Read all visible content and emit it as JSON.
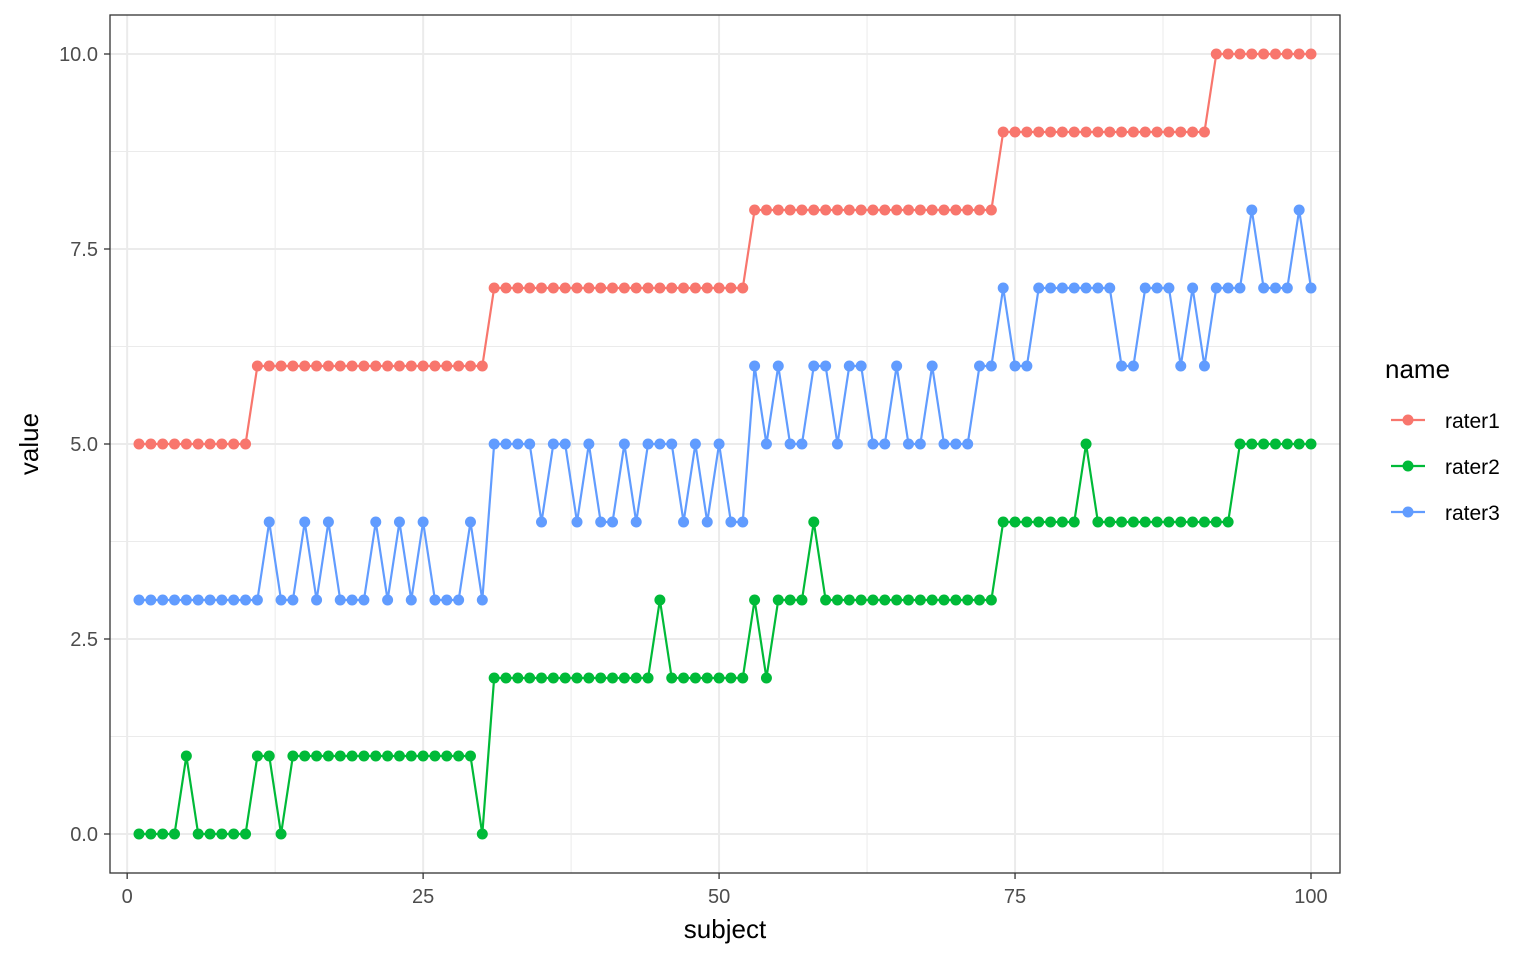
{
  "chart_data": {
    "type": "line",
    "xlabel": "subject",
    "ylabel": "value",
    "xlim": [
      -1.45,
      102.45
    ],
    "ylim": [
      -0.5,
      10.5
    ],
    "x_ticks": [
      0,
      25,
      50,
      75,
      100
    ],
    "x_tick_labels": [
      "0",
      "25",
      "50",
      "75",
      "100"
    ],
    "y_ticks": [
      0,
      2.5,
      5,
      7.5,
      10
    ],
    "y_tick_labels": [
      "0.0",
      "2.5",
      "5.0",
      "7.5",
      "10.0"
    ],
    "grid": true,
    "markers": true,
    "legend": {
      "title": "name",
      "position": "right"
    },
    "series": [
      {
        "name": "rater1",
        "color": "#F8766D",
        "values": [
          5,
          5,
          5,
          5,
          5,
          5,
          5,
          5,
          5,
          5,
          6,
          6,
          6,
          6,
          6,
          6,
          6,
          6,
          6,
          6,
          6,
          6,
          6,
          6,
          6,
          6,
          6,
          6,
          6,
          6,
          7,
          7,
          7,
          7,
          7,
          7,
          7,
          7,
          7,
          7,
          7,
          7,
          7,
          7,
          7,
          7,
          7,
          7,
          7,
          7,
          7,
          7,
          8,
          8,
          8,
          8,
          8,
          8,
          8,
          8,
          8,
          8,
          8,
          8,
          8,
          8,
          8,
          8,
          8,
          8,
          8,
          8,
          8,
          9,
          9,
          9,
          9,
          9,
          9,
          9,
          9,
          9,
          9,
          9,
          9,
          9,
          9,
          9,
          9,
          9,
          9,
          10,
          10,
          10,
          10,
          10,
          10,
          10,
          10,
          10
        ]
      },
      {
        "name": "rater2",
        "color": "#00BA38",
        "values": [
          0,
          0,
          0,
          0,
          1,
          0,
          0,
          0,
          0,
          0,
          1,
          1,
          0,
          1,
          1,
          1,
          1,
          1,
          1,
          1,
          1,
          1,
          1,
          1,
          1,
          1,
          1,
          1,
          1,
          0,
          2,
          2,
          2,
          2,
          2,
          2,
          2,
          2,
          2,
          2,
          2,
          2,
          2,
          2,
          3,
          2,
          2,
          2,
          2,
          2,
          2,
          2,
          3,
          2,
          3,
          3,
          3,
          4,
          3,
          3,
          3,
          3,
          3,
          3,
          3,
          3,
          3,
          3,
          3,
          3,
          3,
          3,
          3,
          4,
          4,
          4,
          4,
          4,
          4,
          4,
          5,
          4,
          4,
          4,
          4,
          4,
          4,
          4,
          4,
          4,
          4,
          4,
          4,
          5,
          5,
          5,
          5,
          5,
          5,
          5
        ]
      },
      {
        "name": "rater3",
        "color": "#619CFF",
        "values": [
          3,
          3,
          3,
          3,
          3,
          3,
          3,
          3,
          3,
          3,
          3,
          4,
          3,
          3,
          4,
          3,
          4,
          3,
          3,
          3,
          4,
          3,
          4,
          3,
          4,
          3,
          3,
          3,
          4,
          3,
          5,
          5,
          5,
          5,
          4,
          5,
          5,
          4,
          5,
          4,
          4,
          5,
          4,
          5,
          5,
          5,
          4,
          5,
          4,
          5,
          4,
          4,
          6,
          5,
          6,
          5,
          5,
          6,
          6,
          5,
          6,
          6,
          5,
          5,
          6,
          5,
          5,
          6,
          5,
          5,
          5,
          6,
          6,
          7,
          6,
          6,
          7,
          7,
          7,
          7,
          7,
          7,
          7,
          6,
          6,
          7,
          7,
          7,
          6,
          7,
          6,
          7,
          7,
          7,
          8,
          7,
          7,
          7,
          8,
          7
        ]
      }
    ]
  }
}
